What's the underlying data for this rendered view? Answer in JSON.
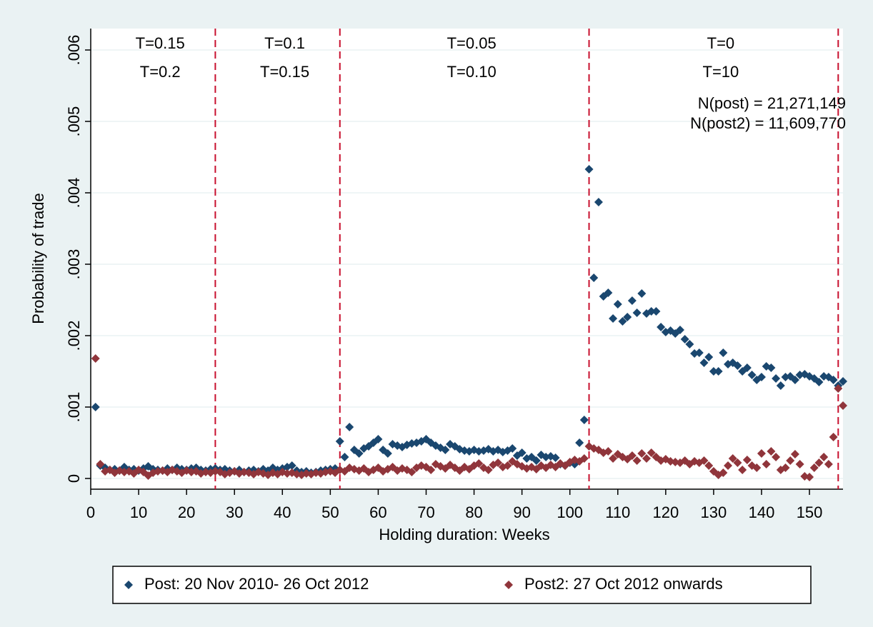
{
  "chart_data": {
    "type": "scatter",
    "x_label": "Holding duration: Weeks",
    "y_label": "Probability of trade",
    "xlim": [
      0,
      157
    ],
    "ylim": [
      -0.00015,
      0.0063
    ],
    "xticks": [
      0,
      10,
      20,
      30,
      40,
      50,
      60,
      70,
      80,
      90,
      100,
      110,
      120,
      130,
      140,
      150
    ],
    "yticks": [
      0,
      {
        "value": 0.001,
        "label": ".001"
      },
      {
        "value": 0.002,
        "label": ".002"
      },
      {
        "value": 0.003,
        "label": ".003"
      },
      {
        "value": 0.004,
        "label": ".004"
      },
      {
        "value": 0.005,
        "label": ".005"
      },
      {
        "value": 0.006,
        "label": ".006"
      }
    ],
    "grid": true,
    "vlines": [
      26,
      52,
      104,
      156
    ],
    "vline_color": "#c8102e",
    "region_labels": [
      "T=0.15",
      "T=0.1",
      "T=0.05",
      "T=0"
    ],
    "region_labels2": [
      "T=0.2",
      "T=0.15",
      "T=0.10",
      "T=10"
    ],
    "notes": [
      "N(post) = 21,271,149",
      "N(post2) = 11,609,770"
    ],
    "legend": "bottom",
    "x": [
      1,
      2,
      3,
      4,
      5,
      6,
      7,
      8,
      9,
      10,
      11,
      12,
      13,
      14,
      15,
      16,
      17,
      18,
      19,
      20,
      21,
      22,
      23,
      24,
      25,
      26,
      27,
      28,
      29,
      30,
      31,
      32,
      33,
      34,
      35,
      36,
      37,
      38,
      39,
      40,
      41,
      42,
      43,
      44,
      45,
      46,
      47,
      48,
      49,
      50,
      51,
      52,
      53,
      54,
      55,
      56,
      57,
      58,
      59,
      60,
      61,
      62,
      63,
      64,
      65,
      66,
      67,
      68,
      69,
      70,
      71,
      72,
      73,
      74,
      75,
      76,
      77,
      78,
      79,
      80,
      81,
      82,
      83,
      84,
      85,
      86,
      87,
      88,
      89,
      90,
      91,
      92,
      93,
      94,
      95,
      96,
      97,
      98,
      99,
      100,
      101,
      102,
      103,
      104,
      105,
      106,
      107,
      108,
      109,
      110,
      111,
      112,
      113,
      114,
      115,
      116,
      117,
      118,
      119,
      120,
      121,
      122,
      123,
      124,
      125,
      126,
      127,
      128,
      129,
      130,
      131,
      132,
      133,
      134,
      135,
      136,
      137,
      138,
      139,
      140,
      141,
      142,
      143,
      144,
      145,
      146,
      147,
      148,
      149,
      150,
      151,
      152,
      153,
      154,
      155,
      156,
      157
    ],
    "series": [
      {
        "name": "Post: 20 Nov 2010- 26 Oct 2012",
        "color": "#1a476f",
        "values": [
          0.001,
          0.00018,
          0.00015,
          0.00012,
          0.00013,
          0.00011,
          0.00016,
          0.00012,
          0.00013,
          0.00011,
          0.00014,
          0.00017,
          0.00013,
          0.00012,
          0.00011,
          0.00014,
          0.00012,
          0.00015,
          0.00013,
          0.00012,
          0.00014,
          0.00015,
          0.00012,
          0.00011,
          0.00013,
          0.00014,
          0.00012,
          0.00013,
          0.00011,
          0.0001,
          0.00012,
          9e-05,
          0.00011,
          0.00012,
          0.0001,
          0.00013,
          0.00011,
          0.00015,
          0.00012,
          0.00014,
          0.00016,
          0.00018,
          0.00011,
          9e-05,
          0.0001,
          8e-05,
          9e-05,
          0.00011,
          0.00012,
          0.00013,
          0.00014,
          0.00052,
          0.0003,
          0.00072,
          0.0004,
          0.00035,
          0.00042,
          0.00045,
          0.0005,
          0.00055,
          0.0004,
          0.00035,
          0.00048,
          0.00046,
          0.00044,
          0.00047,
          0.00049,
          0.0005,
          0.00052,
          0.00055,
          0.0005,
          0.00046,
          0.00043,
          0.0004,
          0.00048,
          0.00045,
          0.00041,
          0.00039,
          0.00038,
          0.0004,
          0.00038,
          0.00039,
          0.00041,
          0.00038,
          0.0004,
          0.00037,
          0.00039,
          0.00042,
          0.00032,
          0.00036,
          0.00028,
          0.0003,
          0.00025,
          0.00033,
          0.0003,
          0.00031,
          0.00029,
          0.0002,
          0.00018,
          0.00022,
          0.0002,
          0.0005,
          0.00082,
          0.00433,
          0.00281,
          0.00387,
          0.00255,
          0.0026,
          0.00224,
          0.00244,
          0.0022,
          0.00226,
          0.00249,
          0.00232,
          0.00259,
          0.00231,
          0.00234,
          0.00234,
          0.00212,
          0.00205,
          0.00207,
          0.00203,
          0.00208,
          0.00195,
          0.00188,
          0.00175,
          0.00176,
          0.00162,
          0.0017,
          0.0015,
          0.0015,
          0.00176,
          0.0016,
          0.00162,
          0.00158,
          0.0015,
          0.00155,
          0.00145,
          0.00138,
          0.00142,
          0.00157,
          0.00155,
          0.0014,
          0.0013,
          0.00142,
          0.00143,
          0.00138,
          0.00145,
          0.00146,
          0.00143,
          0.0014,
          0.00135,
          0.00143,
          0.00142,
          0.00138,
          0.0013,
          0.00136
        ]
      },
      {
        "name": "Post2: 27 Oct 2012 onwards",
        "color": "#90353b",
        "values": [
          0.00168,
          0.0002,
          0.0001,
          0.00012,
          8e-05,
          0.00011,
          9e-05,
          0.0001,
          7e-05,
          0.00012,
          9e-05,
          4e-05,
          8e-05,
          0.0001,
          0.00011,
          9e-05,
          0.00012,
          0.0001,
          8e-05,
          0.00011,
          9e-05,
          0.0001,
          7e-05,
          9e-05,
          8e-05,
          0.0001,
          9e-05,
          6e-05,
          8e-05,
          0.0001,
          7e-05,
          9e-05,
          8e-05,
          6e-05,
          9e-05,
          7e-05,
          5e-05,
          8e-05,
          6e-05,
          9e-05,
          7e-05,
          8e-05,
          6e-05,
          5e-05,
          7e-05,
          6e-05,
          8e-05,
          7e-05,
          9e-05,
          0.0001,
          8e-05,
          0.00012,
          0.0001,
          0.00015,
          0.00013,
          0.00011,
          0.00014,
          9e-05,
          0.00012,
          0.00015,
          0.0001,
          0.00013,
          0.00016,
          0.00011,
          0.00014,
          0.00012,
          9e-05,
          0.00015,
          0.00018,
          0.00016,
          0.00012,
          0.0002,
          0.00017,
          0.00014,
          0.00019,
          0.00015,
          0.00011,
          0.00016,
          0.00013,
          0.00018,
          0.00021,
          0.00015,
          0.00012,
          0.00019,
          0.00022,
          0.00016,
          0.00018,
          0.00024,
          0.0002,
          0.00017,
          0.00014,
          0.00016,
          0.00013,
          0.00018,
          0.00015,
          0.00019,
          0.00016,
          0.00021,
          0.00018,
          0.00023,
          0.00026,
          0.00024,
          0.00028,
          0.00045,
          0.00042,
          0.0004,
          0.00036,
          0.00038,
          0.00028,
          0.00034,
          0.0003,
          0.00027,
          0.00032,
          0.00025,
          0.00035,
          0.00028,
          0.00036,
          0.0003,
          0.00025,
          0.00027,
          0.00024,
          0.00023,
          0.00022,
          0.00025,
          0.0002,
          0.00024,
          0.00022,
          0.00025,
          0.00018,
          0.0001,
          5e-05,
          8e-05,
          0.00018,
          0.00028,
          0.00022,
          0.00012,
          0.00026,
          0.00018,
          0.00015,
          0.00035,
          0.0002,
          0.00038,
          0.0003,
          0.00012,
          0.00015,
          0.00025,
          0.00034,
          0.0002,
          3e-05,
          2e-05,
          0.00015,
          0.00022,
          0.0003,
          0.0002,
          0.00058,
          0.00126,
          0.00102
        ]
      }
    ]
  }
}
